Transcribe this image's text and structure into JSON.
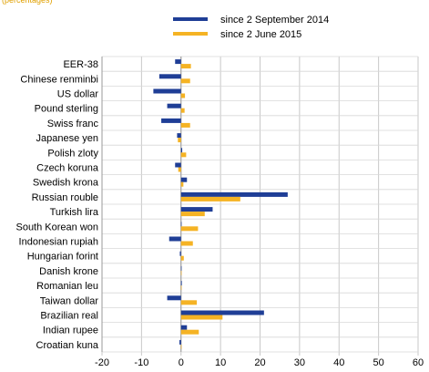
{
  "header": {
    "link_text": "(percentages)"
  },
  "chart_data": {
    "type": "bar",
    "orientation": "horizontal",
    "title": "",
    "xlabel": "",
    "ylabel": "",
    "xlim": [
      -20,
      60
    ],
    "x_ticks": [
      -20,
      -10,
      0,
      10,
      20,
      30,
      40,
      50,
      60
    ],
    "grid": true,
    "legend_position": "top",
    "categories": [
      "EER-38",
      "Chinese renminbi",
      "US dollar",
      "Pound sterling",
      "Swiss franc",
      "Japanese yen",
      "Polish zloty",
      "Czech koruna",
      "Swedish krona",
      "Russian rouble",
      "Turkish lira",
      "South Korean won",
      "Indonesian rupiah",
      "Hungarian forint",
      "Danish krone",
      "Romanian leu",
      "Taiwan dollar",
      "Brazilian real",
      "Indian rupee",
      "Croatian kuna"
    ],
    "series": [
      {
        "name": "since 2 September 2014",
        "color": "#1f3e96",
        "values": [
          -1.5,
          -5.5,
          -7,
          -3.5,
          -5,
          -1,
          0.3,
          -1.5,
          1.5,
          27,
          8,
          0,
          -3,
          -0.3,
          0.1,
          0.2,
          -3.5,
          21,
          1.5,
          -0.4
        ]
      },
      {
        "name": "since 2 June 2015",
        "color": "#f5b324",
        "values": [
          2.5,
          2.3,
          1,
          0.9,
          2.3,
          -0.8,
          1.3,
          -0.7,
          0.6,
          15,
          6,
          4.3,
          3,
          0.7,
          0,
          0,
          4,
          10.5,
          4.5,
          0
        ]
      }
    ]
  }
}
